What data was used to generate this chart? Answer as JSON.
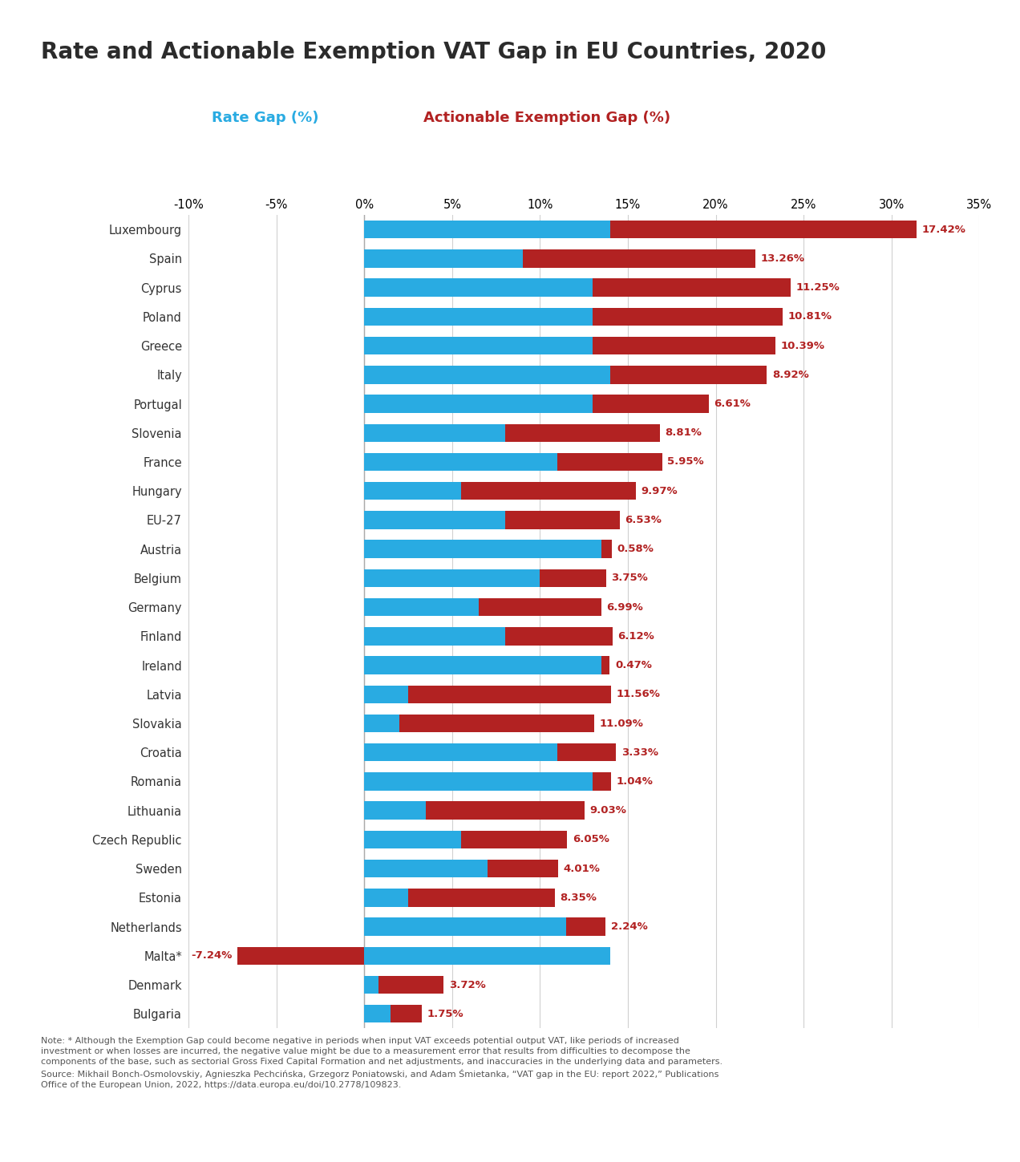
{
  "title": "Rate and Actionable Exemption VAT Gap in EU Countries, 2020",
  "countries": [
    "Luxembourg",
    "Spain",
    "Cyprus",
    "Poland",
    "Greece",
    "Italy",
    "Portugal",
    "Slovenia",
    "France",
    "Hungary",
    "EU-27",
    "Austria",
    "Belgium",
    "Germany",
    "Finland",
    "Ireland",
    "Latvia",
    "Slovakia",
    "Croatia",
    "Romania",
    "Lithuania",
    "Czech Republic",
    "Sweden",
    "Estonia",
    "Netherlands",
    "Malta*",
    "Denmark",
    "Bulgaria"
  ],
  "rate_gap": [
    14.0,
    9.0,
    13.0,
    13.0,
    13.0,
    14.0,
    13.0,
    8.0,
    11.0,
    5.5,
    8.0,
    13.5,
    10.0,
    6.5,
    8.0,
    13.5,
    2.5,
    2.0,
    11.0,
    13.0,
    3.5,
    5.5,
    7.0,
    2.5,
    11.5,
    14.0,
    0.8,
    1.5
  ],
  "exemption_gap": [
    17.42,
    13.26,
    11.25,
    10.81,
    10.39,
    8.92,
    6.61,
    8.81,
    5.95,
    9.97,
    6.53,
    0.58,
    3.75,
    6.99,
    6.12,
    0.47,
    11.56,
    11.09,
    3.33,
    1.04,
    9.03,
    6.05,
    4.01,
    8.35,
    2.24,
    -7.24,
    3.72,
    1.75
  ],
  "rate_color": "#29ABE2",
  "exemption_color": "#B22222",
  "label_color": "#B22222",
  "title_color": "#2B2B2B",
  "xlim": [
    -10,
    35
  ],
  "xticks": [
    -10,
    -5,
    0,
    5,
    10,
    15,
    20,
    25,
    30,
    35
  ],
  "background_color": "#FFFFFF",
  "footer_color": "#29ABE2",
  "note_text": "Note: * Although the Exemption Gap could become negative in periods when input VAT exceeds potential output VAT, like periods of increased\ninvestment or when losses are incurred, the negative value might be due to a measurement error that results from difficulties to decompose the\ncomponents of the base, such as sectorial Gross Fixed Capital Formation and net adjustments, and inaccuracies in the underlying data and parameters.\nSource: Mikhail Bonch-Osmolovskiy, Agnieszka Pechcińska, Grzegorz Poniatowski, and Adam Śmietanka, “VAT gap in the EU: report 2022,” Publications\nOffice of the European Union, 2022, https://data.europa.eu/doi/10.2778/109823."
}
